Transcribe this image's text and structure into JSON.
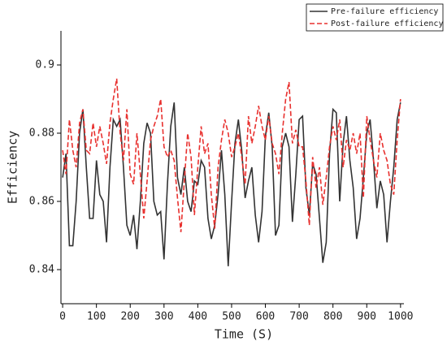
{
  "chart_data": {
    "type": "line",
    "xlabel": "Time (S)",
    "ylabel": "Efficiency",
    "x": [
      0,
      10,
      20,
      30,
      40,
      50,
      60,
      70,
      80,
      90,
      100,
      110,
      120,
      130,
      140,
      150,
      160,
      170,
      180,
      190,
      200,
      210,
      220,
      230,
      240,
      250,
      260,
      270,
      280,
      290,
      300,
      310,
      320,
      330,
      340,
      350,
      360,
      370,
      380,
      390,
      400,
      410,
      420,
      430,
      440,
      450,
      460,
      470,
      480,
      490,
      500,
      510,
      520,
      530,
      540,
      550,
      560,
      570,
      580,
      590,
      600,
      610,
      620,
      630,
      640,
      650,
      660,
      670,
      680,
      690,
      700,
      710,
      720,
      730,
      740,
      750,
      760,
      770,
      780,
      790,
      800,
      810,
      820,
      830,
      840,
      850,
      860,
      870,
      880,
      890,
      900,
      910,
      920,
      930,
      940,
      950,
      960,
      970,
      980,
      990,
      1000
    ],
    "series": [
      {
        "name": "Pre-failure efficiency",
        "color": "#333333",
        "dash": "none",
        "values": [
          0.867,
          0.874,
          0.847,
          0.847,
          0.86,
          0.88,
          0.887,
          0.87,
          0.855,
          0.855,
          0.872,
          0.862,
          0.86,
          0.848,
          0.87,
          0.884,
          0.882,
          0.884,
          0.87,
          0.853,
          0.85,
          0.856,
          0.846,
          0.86,
          0.877,
          0.883,
          0.88,
          0.86,
          0.856,
          0.857,
          0.843,
          0.865,
          0.882,
          0.889,
          0.867,
          0.862,
          0.87,
          0.86,
          0.857,
          0.866,
          0.865,
          0.872,
          0.87,
          0.855,
          0.849,
          0.853,
          0.862,
          0.875,
          0.862,
          0.841,
          0.86,
          0.877,
          0.884,
          0.875,
          0.861,
          0.866,
          0.87,
          0.856,
          0.848,
          0.857,
          0.879,
          0.886,
          0.876,
          0.85,
          0.853,
          0.876,
          0.88,
          0.876,
          0.854,
          0.868,
          0.884,
          0.885,
          0.864,
          0.856,
          0.871,
          0.868,
          0.855,
          0.842,
          0.848,
          0.874,
          0.887,
          0.886,
          0.86,
          0.877,
          0.885,
          0.872,
          0.864,
          0.849,
          0.855,
          0.867,
          0.88,
          0.884,
          0.872,
          0.858,
          0.866,
          0.862,
          0.848,
          0.86,
          0.87,
          0.884,
          0.889
        ]
      },
      {
        "name": "Post-failure efficiency",
        "color": "#e8312f",
        "dash": "dashed",
        "values": [
          0.875,
          0.868,
          0.884,
          0.875,
          0.87,
          0.883,
          0.887,
          0.875,
          0.874,
          0.883,
          0.876,
          0.882,
          0.877,
          0.871,
          0.883,
          0.89,
          0.896,
          0.88,
          0.872,
          0.887,
          0.868,
          0.865,
          0.88,
          0.868,
          0.855,
          0.866,
          0.878,
          0.882,
          0.885,
          0.89,
          0.876,
          0.873,
          0.875,
          0.872,
          0.861,
          0.851,
          0.866,
          0.88,
          0.873,
          0.856,
          0.87,
          0.882,
          0.874,
          0.877,
          0.862,
          0.852,
          0.87,
          0.878,
          0.884,
          0.88,
          0.873,
          0.876,
          0.88,
          0.873,
          0.865,
          0.885,
          0.877,
          0.882,
          0.888,
          0.882,
          0.878,
          0.885,
          0.877,
          0.874,
          0.868,
          0.88,
          0.89,
          0.895,
          0.877,
          0.881,
          0.876,
          0.876,
          0.866,
          0.853,
          0.873,
          0.864,
          0.87,
          0.859,
          0.867,
          0.876,
          0.882,
          0.878,
          0.884,
          0.87,
          0.878,
          0.875,
          0.88,
          0.874,
          0.88,
          0.861,
          0.885,
          0.878,
          0.872,
          0.867,
          0.88,
          0.875,
          0.872,
          0.865,
          0.862,
          0.878,
          0.89
        ]
      }
    ],
    "xlim": [
      -5,
      1010
    ],
    "xticks": [
      0,
      100,
      200,
      300,
      400,
      500,
      600,
      700,
      800,
      900,
      1000
    ],
    "ylim": [
      0.83,
      0.91
    ],
    "yticks": [
      0.84,
      0.86,
      0.88,
      0.9
    ],
    "legend": "upper right"
  }
}
